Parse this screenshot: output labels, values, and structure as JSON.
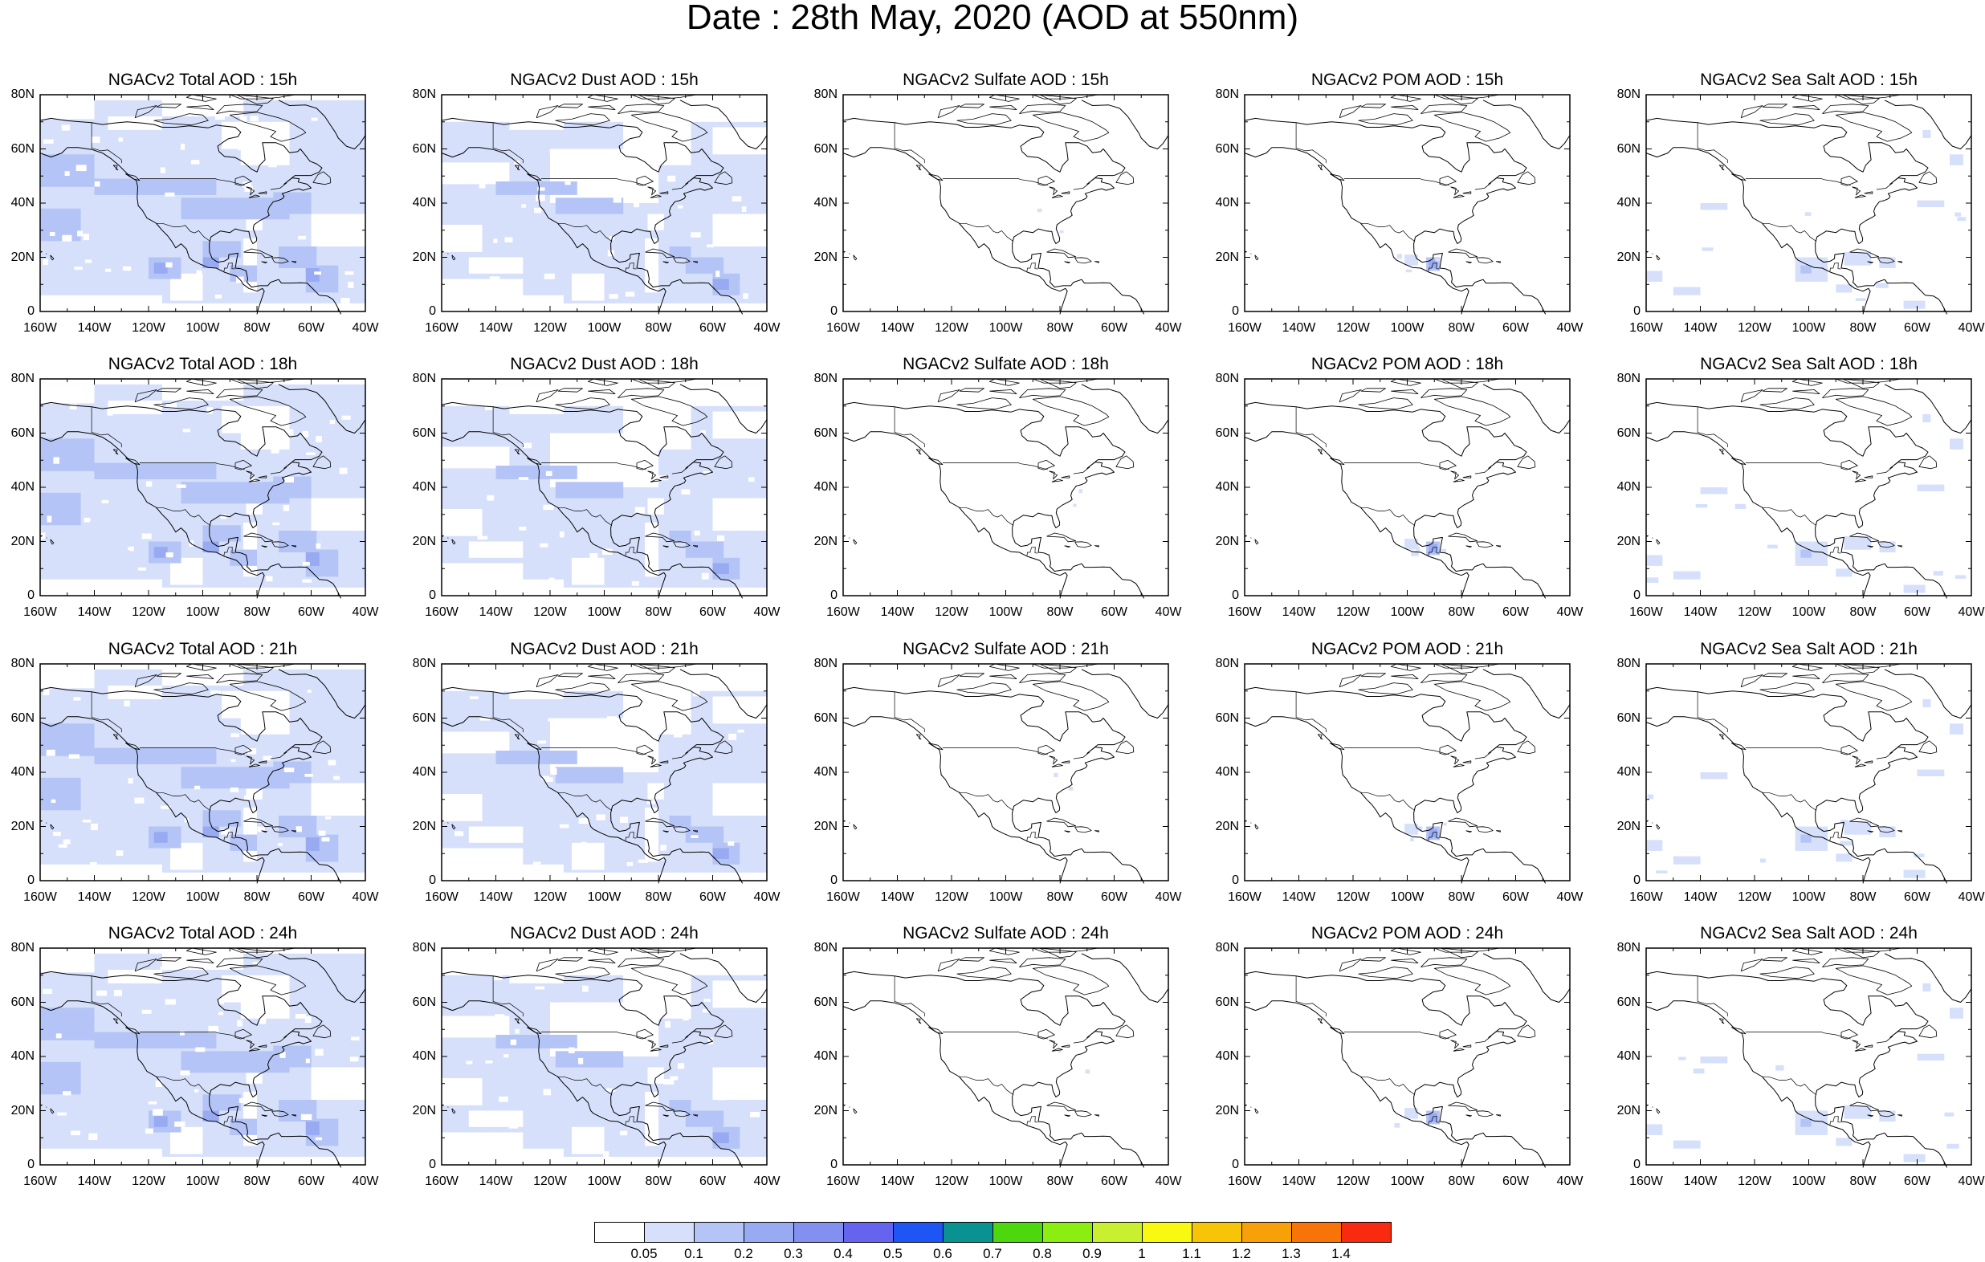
{
  "title": "Date : 28th May, 2020 (AOD at 550nm)",
  "axes": {
    "lat_labels": [
      "80N",
      "60N",
      "40N",
      "20N",
      "0"
    ],
    "lon_labels": [
      "160W",
      "140W",
      "120W",
      "100W",
      "80W",
      "60W",
      "40W"
    ]
  },
  "panels": [
    [
      "NGACv2 Total AOD : 15h",
      "NGACv2 Dust AOD : 15h",
      "NGACv2 Sulfate AOD : 15h",
      "NGACv2 POM AOD : 15h",
      "NGACv2 Sea Salt AOD : 15h"
    ],
    [
      "NGACv2 Total AOD : 18h",
      "NGACv2 Dust AOD : 18h",
      "NGACv2 Sulfate AOD : 18h",
      "NGACv2 POM AOD : 18h",
      "NGACv2 Sea Salt AOD : 18h"
    ],
    [
      "NGACv2 Total AOD : 21h",
      "NGACv2 Dust AOD : 21h",
      "NGACv2 Sulfate AOD : 21h",
      "NGACv2 POM AOD : 21h",
      "NGACv2 Sea Salt AOD : 21h"
    ],
    [
      "NGACv2 Total AOD : 24h",
      "NGACv2 Dust AOD : 24h",
      "NGACv2 Sulfate AOD : 24h",
      "NGACv2 POM AOD : 24h",
      "NGACv2 Sea Salt  AOD : 24h"
    ]
  ],
  "colorbar": {
    "labels": [
      "0.05",
      "0.1",
      "0.2",
      "0.3",
      "0.4",
      "0.5",
      "0.6",
      "0.7",
      "0.8",
      "0.9",
      "1",
      "1.1",
      "1.2",
      "1.3",
      "1.4"
    ],
    "colors": [
      "#ffffff",
      "#d6e0fb",
      "#b4c4f6",
      "#97aaf2",
      "#8390f0",
      "#6464ee",
      "#1e56f6",
      "#0a9292",
      "#4cd80c",
      "#8cee10",
      "#c8f030",
      "#f8f810",
      "#f8c408",
      "#f8a008",
      "#f87408",
      "#f82a10"
    ]
  },
  "aod_fields": {
    "total": "widespread light-blue AOD (0.1–0.2) over North America and surrounding oceans, locally 0.2–0.3 over the Gulf of Mexico, Caribbean and western Atlantic",
    "dust": "widespread light-blue AOD (0.1–0.2) over most of the domain, 0.2–0.3 near the Caribbean",
    "sulfate": "mostly below 0.05, a few small light patches",
    "pom": "mostly below 0.05, small patches 0.1–0.3 over southern Mexico and Central America",
    "sea_salt": "mostly below 0.05, scattered 0.1–0.2 patches over the Pacific, Gulf, Caribbean and North Atlantic"
  }
}
